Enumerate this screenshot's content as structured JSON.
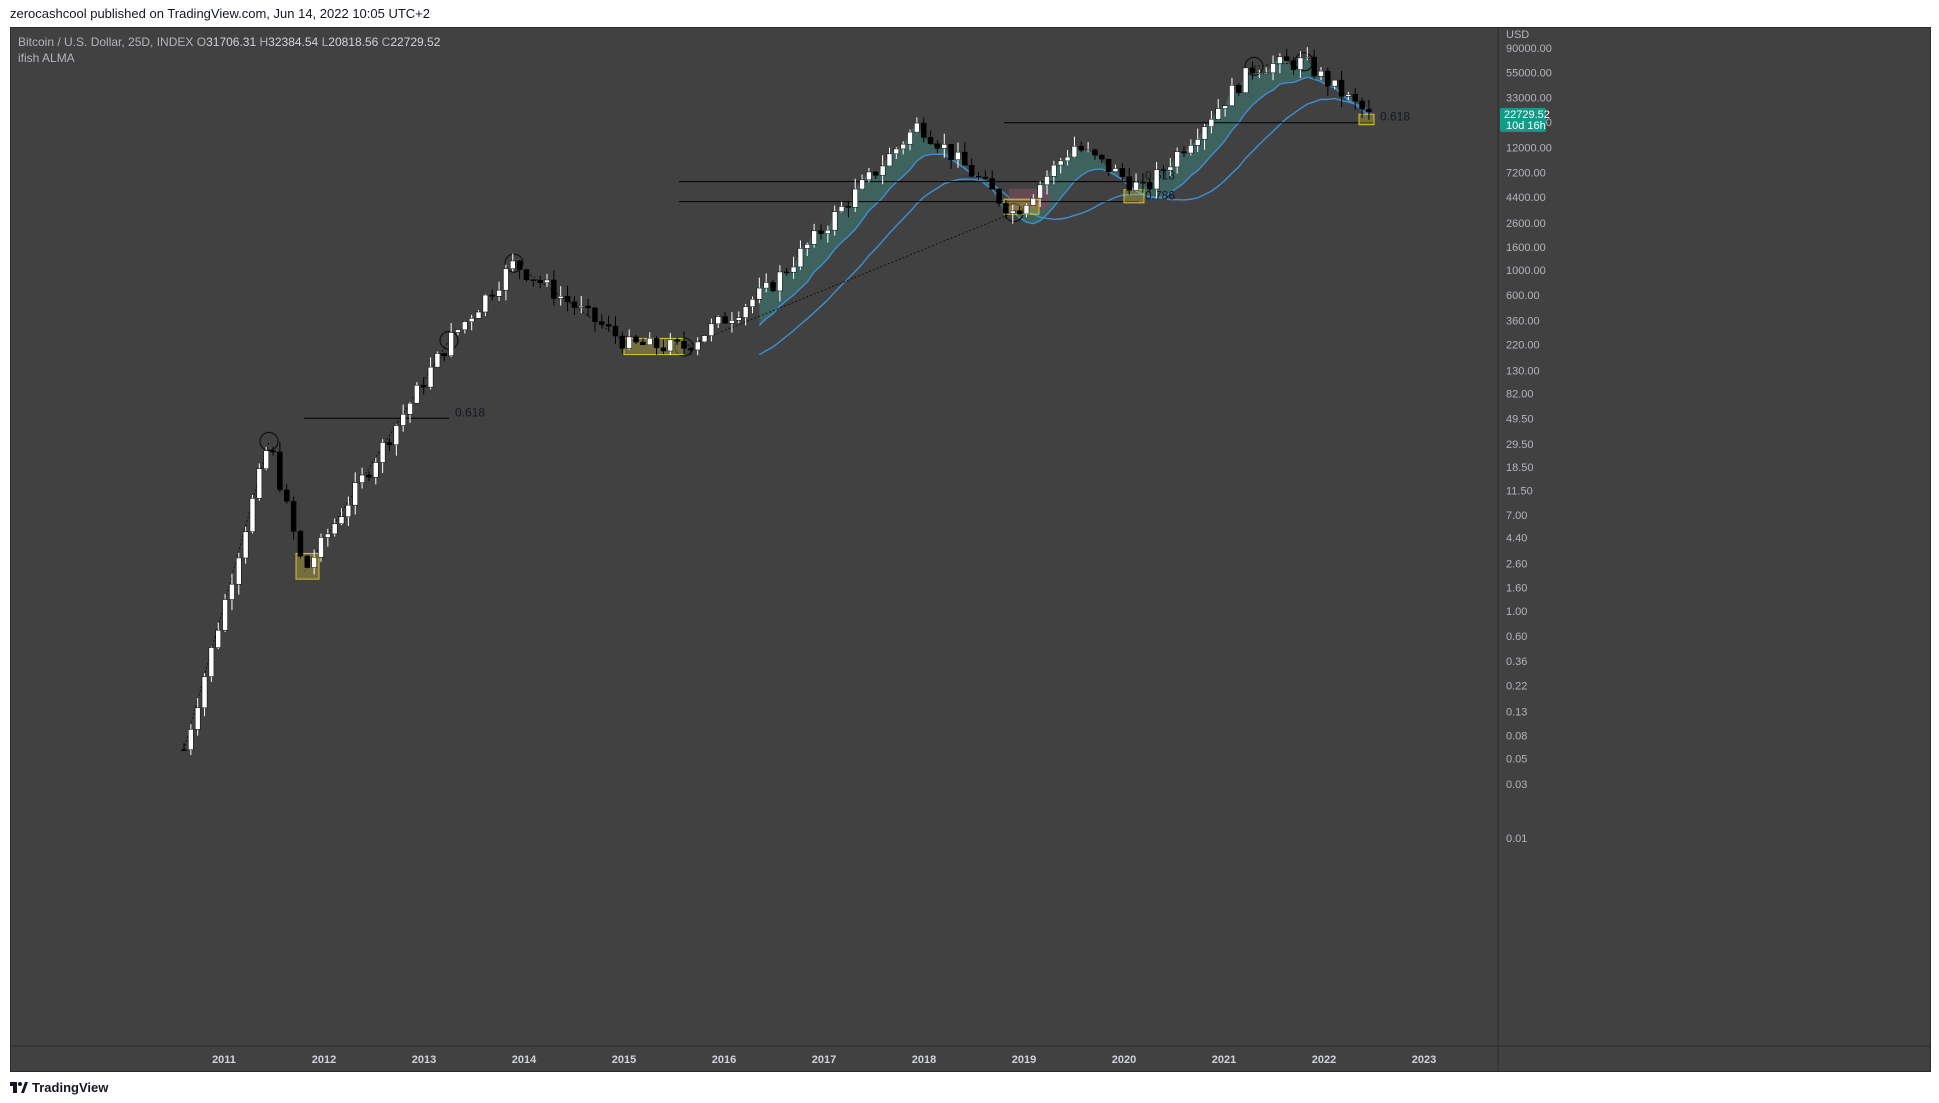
{
  "header": {
    "published": "zerocashcool published on TradingView.com, Jun 14, 2022 10:05 UTC+2"
  },
  "legend": {
    "symbol": "Bitcoin / U.S. Dollar, 25D, INDEX",
    "o_label": "O",
    "o_value": "31706.31",
    "h_label": "H",
    "h_value": "32384.54",
    "l_label": "L",
    "l_value": "20818.56",
    "c_label": "C",
    "c_value": "22729.52",
    "indicator": "ifish ALMA"
  },
  "footer": {
    "brand": "TradingView"
  },
  "price_tag": {
    "price": "22729.52",
    "countdown": "10d 16h"
  },
  "colors": {
    "background": "#414141",
    "up_candle": "#ffffff",
    "down_candle": "#000000",
    "alma_line": "#3d8fd6",
    "fill": "#3e6a64",
    "fill_red": "#6a4a56",
    "price_tag": "#0f9d8a",
    "box": "#d6c23a"
  },
  "chart_data": {
    "type": "candlestick",
    "title": "Bitcoin / U.S. Dollar, 25D, INDEX",
    "yscale": "log",
    "yunit": "USD",
    "ylim": [
      0.01,
      90000
    ],
    "y_ticks": [
      "90000.00",
      "55000.00",
      "33000.00",
      "20000.00",
      "12000.00",
      "7200.00",
      "4400.00",
      "2600.00",
      "1600.00",
      "1000.00",
      "600.00",
      "360.00",
      "220.00",
      "130.00",
      "82.00",
      "49.50",
      "29.50",
      "18.50",
      "11.50",
      "7.00",
      "4.40",
      "2.60",
      "1.60",
      "1.00",
      "0.60",
      "0.36",
      "0.22",
      "0.13",
      "0.08",
      "0.05",
      "0.03",
      "0.01"
    ],
    "x_ticks": [
      "2011",
      "2012",
      "2013",
      "2014",
      "2015",
      "2016",
      "2017",
      "2018",
      "2019",
      "2020",
      "2021",
      "2022",
      "2023"
    ],
    "anchor_points": [
      {
        "year": 2010.6,
        "price": 0.06
      },
      {
        "year": 2011.45,
        "price": 31
      },
      {
        "year": 2011.8,
        "price": 2.2
      },
      {
        "year": 2013.25,
        "price": 240
      },
      {
        "year": 2013.9,
        "price": 1150
      },
      {
        "year": 2015.05,
        "price": 220
      },
      {
        "year": 2015.6,
        "price": 210
      },
      {
        "year": 2016.45,
        "price": 700
      },
      {
        "year": 2017.95,
        "price": 19500
      },
      {
        "year": 2018.9,
        "price": 3200
      },
      {
        "year": 2019.5,
        "price": 12500
      },
      {
        "year": 2020.2,
        "price": 5000
      },
      {
        "year": 2021.3,
        "price": 62000
      },
      {
        "year": 2021.8,
        "price": 68000
      },
      {
        "year": 2022.45,
        "price": 22729.52
      }
    ],
    "fib_levels": [
      {
        "label": "0.618",
        "price": 49.5
      },
      {
        "label": "0.618",
        "price": 6000
      },
      {
        "label": "0.786",
        "price": 4000
      },
      {
        "label": "0.618",
        "price": 19800
      }
    ],
    "last_price": 22729.52
  }
}
